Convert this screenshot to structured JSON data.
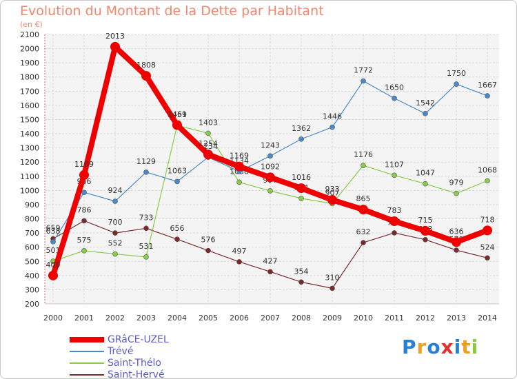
{
  "chart_data": {
    "type": "line",
    "title": "Evolution du Montant de la Dette par Habitant",
    "subtitle": "(en €)",
    "x": [
      "2000",
      "2001",
      "2002",
      "2003",
      "2004",
      "2005",
      "2006",
      "2007",
      "2008",
      "2009",
      "2010",
      "2011",
      "2012",
      "2013",
      "2014"
    ],
    "ylim": [
      200,
      2100
    ],
    "yticks": [
      200,
      300,
      400,
      500,
      600,
      700,
      800,
      900,
      1000,
      1100,
      1200,
      1300,
      1400,
      1500,
      1600,
      1700,
      1800,
      1900,
      2000,
      2100
    ],
    "grid": true,
    "legend_position": "bottom-left",
    "series": [
      {
        "name": "Saint-Hervé",
        "color": "#7a2a2a",
        "values": [
          659,
          786,
          700,
          733,
          656,
          576,
          497,
          427,
          354,
          310,
          632,
          701,
          653,
          579,
          524
        ]
      },
      {
        "name": "Saint-Thélo",
        "color": "#88cc4a",
        "values": [
          501,
          575,
          552,
          531,
          1459,
          1403,
          1058,
          997,
          944,
          907,
          1176,
          1107,
          1047,
          979,
          1068
        ]
      },
      {
        "name": "Trévé",
        "color": "#4a8ac8",
        "values": [
          638,
          986,
          924,
          1129,
          1063,
          1234,
          1134,
          1243,
          1362,
          1446,
          1772,
          1650,
          1542,
          1750,
          1667
        ]
      },
      {
        "name": "GRâCE-UZEL",
        "color": "#ee0000",
        "values": [
          400,
          1109,
          2013,
          1808,
          1461,
          1254,
          1169,
          1092,
          1016,
          933,
          865,
          783,
          715,
          636,
          718
        ]
      }
    ]
  },
  "legend": [
    {
      "label": "GRâCE-UZEL",
      "color": "#ee0000"
    },
    {
      "label": "Trévé",
      "color": "#4a8ac8"
    },
    {
      "label": "Saint-Thélo",
      "color": "#88cc4a"
    },
    {
      "label": "Saint-Hervé",
      "color": "#7a2a2a"
    }
  ],
  "logo": {
    "letters": [
      "P",
      "r",
      "o",
      "x",
      "i",
      "t",
      "i"
    ],
    "colors": [
      "#2a7fd4",
      "#f0a020",
      "#2a7fd4",
      "#e03030",
      "#2a7fd4",
      "#f0a020",
      "#8cc83c"
    ]
  }
}
